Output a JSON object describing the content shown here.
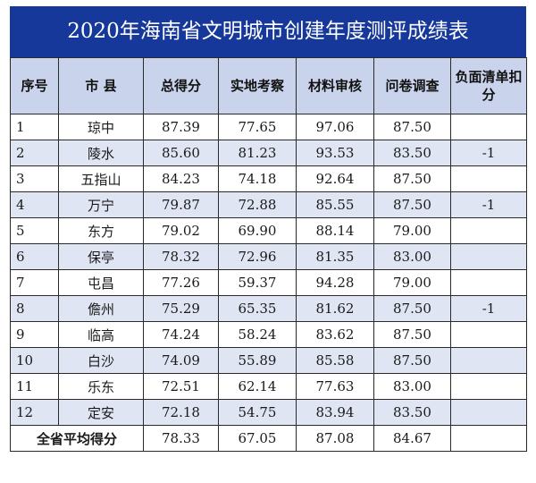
{
  "title": "2020年海南省文明城市创建年度测评成绩表",
  "headers": {
    "no": "序号",
    "city": "市 县",
    "total": "总得分",
    "field": "实地考察",
    "material": "材料审核",
    "survey": "问卷调查",
    "deduct": "负面清单扣分"
  },
  "rows": [
    {
      "no": "1",
      "city": "琼中",
      "total": "87.39",
      "field": "77.65",
      "material": "97.06",
      "survey": "87.50",
      "deduct": ""
    },
    {
      "no": "2",
      "city": "陵水",
      "total": "85.60",
      "field": "81.23",
      "material": "93.53",
      "survey": "83.50",
      "deduct": "-1"
    },
    {
      "no": "3",
      "city": "五指山",
      "total": "84.23",
      "field": "74.18",
      "material": "92.64",
      "survey": "87.50",
      "deduct": ""
    },
    {
      "no": "4",
      "city": "万宁",
      "total": "79.87",
      "field": "72.88",
      "material": "85.55",
      "survey": "87.50",
      "deduct": "-1"
    },
    {
      "no": "5",
      "city": "东方",
      "total": "79.02",
      "field": "69.90",
      "material": "88.14",
      "survey": "79.00",
      "deduct": ""
    },
    {
      "no": "6",
      "city": "保亭",
      "total": "78.32",
      "field": "72.96",
      "material": "81.35",
      "survey": "83.00",
      "deduct": ""
    },
    {
      "no": "7",
      "city": "屯昌",
      "total": "77.26",
      "field": "59.37",
      "material": "94.28",
      "survey": "79.00",
      "deduct": ""
    },
    {
      "no": "8",
      "city": "儋州",
      "total": "75.29",
      "field": "65.35",
      "material": "81.62",
      "survey": "87.50",
      "deduct": "-1"
    },
    {
      "no": "9",
      "city": "临高",
      "total": "74.24",
      "field": "58.24",
      "material": "83.62",
      "survey": "87.50",
      "deduct": ""
    },
    {
      "no": "10",
      "city": "白沙",
      "total": "74.09",
      "field": "55.89",
      "material": "85.58",
      "survey": "87.50",
      "deduct": ""
    },
    {
      "no": "11",
      "city": "乐东",
      "total": "72.51",
      "field": "62.14",
      "material": "77.63",
      "survey": "83.00",
      "deduct": ""
    },
    {
      "no": "12",
      "city": "定安",
      "total": "72.18",
      "field": "54.75",
      "material": "83.94",
      "survey": "83.50",
      "deduct": ""
    }
  ],
  "average": {
    "label": "全省平均得分",
    "total": "78.33",
    "field": "67.05",
    "material": "87.08",
    "survey": "84.67",
    "deduct": ""
  },
  "colors": {
    "title_bg": "#17389b",
    "header_bg": "#c9d4ec",
    "alt_row_bg": "#dfe5f3",
    "border": "#2a2a2a"
  }
}
